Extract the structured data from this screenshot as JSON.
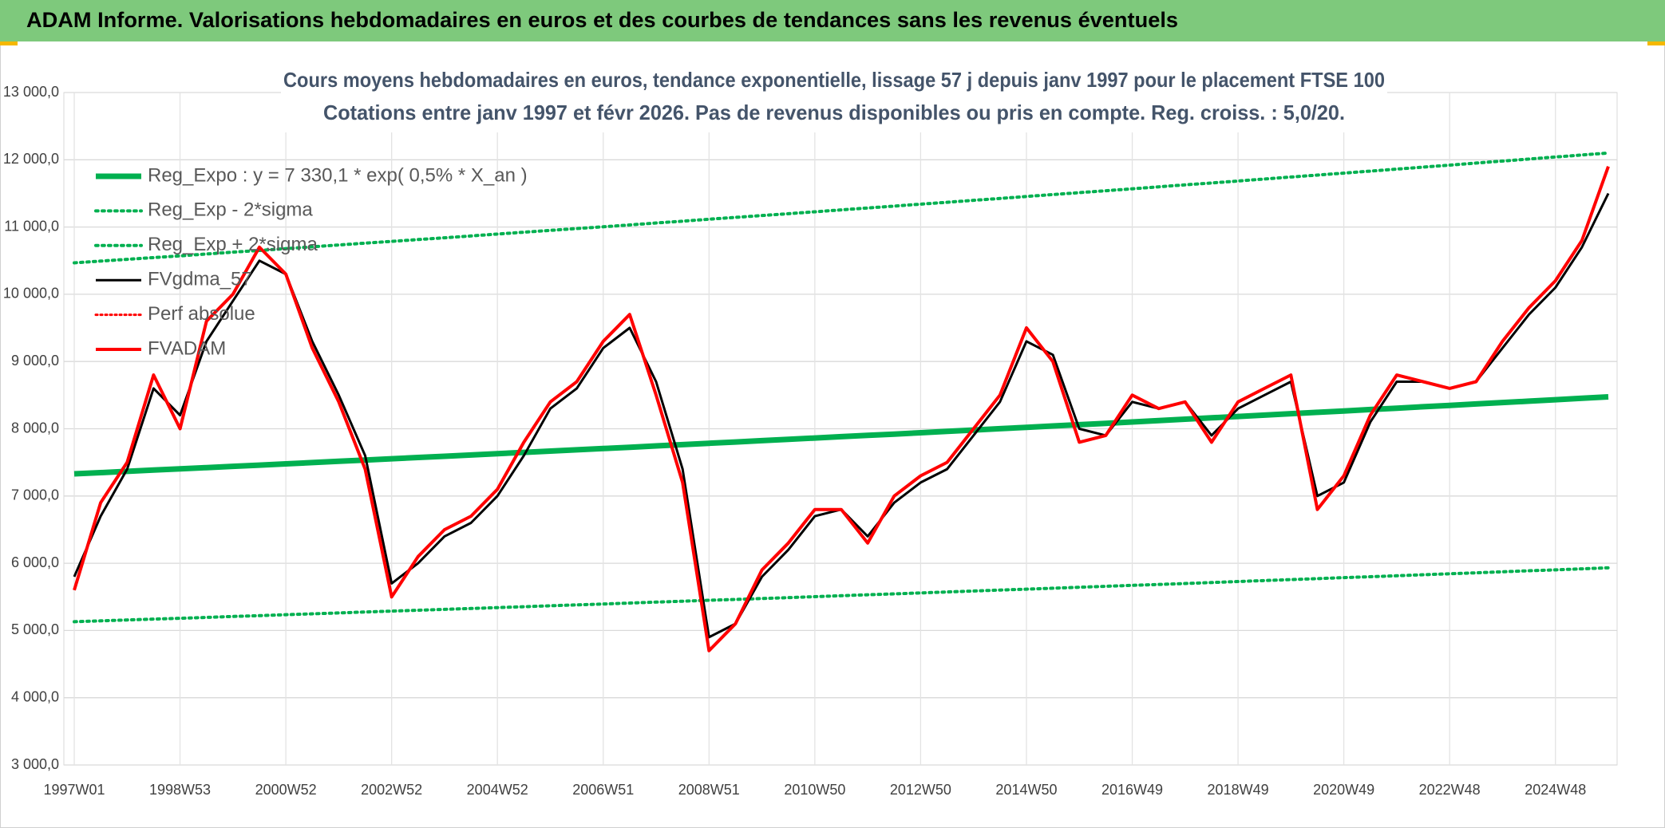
{
  "chart_data": {
    "type": "line",
    "header_title": "ADAM Informe. Valorisations hebdomadaires en euros et des courbes de tendances sans les revenus éventuels",
    "subtitle_lines": [
      "Cours moyens hebdomadaires en euros, tendance exponentielle, lissage 57 j depuis janv 1997 pour le placement FTSE 100",
      "Cotations entre janv 1997 et févr 2026. Pas de revenus disponibles ou pris en compte. Reg. croiss. : 5,0/20."
    ],
    "categories": [
      "1997W01",
      null,
      null,
      null,
      "1998W53",
      null,
      null,
      null,
      "2000W52",
      null,
      null,
      null,
      "2002W52",
      null,
      null,
      null,
      "2004W52",
      null,
      null,
      null,
      "2006W51",
      null,
      null,
      null,
      "2008W51",
      null,
      null,
      null,
      "2010W50",
      null,
      null,
      null,
      "2012W50",
      null,
      null,
      null,
      "2014W50",
      null,
      null,
      null,
      "2016W49",
      null,
      null,
      null,
      "2018W49",
      null,
      null,
      null,
      "2020W49",
      null,
      null,
      null,
      "2022W48",
      null,
      null,
      null,
      "2024W48",
      null,
      null
    ],
    "ylim": [
      3000,
      13000
    ],
    "yticks": [
      {
        "value": 3000,
        "label": "3 000,0"
      },
      {
        "value": 4000,
        "label": "4 000,0"
      },
      {
        "value": 5000,
        "label": "5 000,0"
      },
      {
        "value": 6000,
        "label": "6 000,0"
      },
      {
        "value": 7000,
        "label": "7 000,0"
      },
      {
        "value": 8000,
        "label": "8 000,0"
      },
      {
        "value": 9000,
        "label": "9 000,0"
      },
      {
        "value": 10000,
        "label": "10 000,0"
      },
      {
        "value": 11000,
        "label": "11 000,0"
      },
      {
        "value": 12000,
        "label": "12 000,0"
      },
      {
        "value": 13000,
        "label": "13 000,0"
      }
    ],
    "grid": true,
    "legend": "top-left",
    "series": [
      {
        "name": "Reg_Expo : y = 7 330,1 * exp( 0,5% *  X_an )",
        "color": "#00b050",
        "style": "solid",
        "width": 7,
        "values": [
          7330,
          7348,
          7367,
          7385,
          7403,
          7422,
          7441,
          7459,
          7478,
          7497,
          7516,
          7535,
          7554,
          7573,
          7591,
          7610,
          7630,
          7649,
          7668,
          7687,
          7706,
          7725,
          7745,
          7764,
          7784,
          7803,
          7823,
          7842,
          7862,
          7882,
          7901,
          7921,
          7941,
          7961,
          7981,
          8001,
          8021,
          8041,
          8061,
          8081,
          8101,
          8122,
          8142,
          8162,
          8183,
          8203,
          8224,
          8244,
          8265,
          8286,
          8306,
          8327,
          8348,
          8369,
          8390,
          8411,
          8432,
          8453,
          8474
        ]
      },
      {
        "name": "Reg_Exp - 2*sigma",
        "color": "#00b050",
        "style": "dotted",
        "width": 4,
        "values": [
          5131,
          5144,
          5157,
          5170,
          5182,
          5195,
          5209,
          5221,
          5235,
          5248,
          5261,
          5275,
          5288,
          5301,
          5314,
          5327,
          5341,
          5354,
          5368,
          5381,
          5394,
          5408,
          5422,
          5435,
          5449,
          5462,
          5476,
          5489,
          5503,
          5517,
          5531,
          5545,
          5559,
          5573,
          5587,
          5601,
          5615,
          5629,
          5643,
          5657,
          5671,
          5685,
          5699,
          5713,
          5728,
          5742,
          5757,
          5771,
          5786,
          5800,
          5814,
          5829,
          5844,
          5858,
          5873,
          5888,
          5902,
          5917,
          5932
        ]
      },
      {
        "name": "Reg_Exp + 2*sigma",
        "color": "#00b050",
        "style": "dotted",
        "width": 4,
        "values": [
          10467,
          10493,
          10520,
          10546,
          10571,
          10599,
          10626,
          10651,
          10679,
          10706,
          10733,
          10760,
          10787,
          10814,
          10840,
          10867,
          10896,
          10923,
          10950,
          10977,
          11004,
          11031,
          11060,
          11087,
          11116,
          11143,
          11171,
          11198,
          11227,
          11255,
          11283,
          11311,
          11340,
          11368,
          11397,
          11425,
          11454,
          11483,
          11511,
          11540,
          11568,
          11598,
          11627,
          11655,
          11685,
          11714,
          11744,
          11772,
          11802,
          11832,
          11861,
          11891,
          11921,
          11951,
          11981,
          12011,
          12041,
          12071,
          12101
        ]
      },
      {
        "name": "FVgdma_57",
        "color": "#000000",
        "style": "solid",
        "width": 3,
        "values": [
          5800,
          6700,
          7400,
          8600,
          8200,
          9300,
          9900,
          10500,
          10300,
          9300,
          8500,
          7600,
          5700,
          6000,
          6400,
          6600,
          7000,
          7600,
          8300,
          8600,
          9200,
          9500,
          8700,
          7400,
          4900,
          5100,
          5800,
          6200,
          6700,
          6800,
          6400,
          6900,
          7200,
          7400,
          7900,
          8400,
          9300,
          9100,
          8000,
          7900,
          8400,
          8300,
          8400,
          7900,
          8300,
          8500,
          8700,
          7000,
          7200,
          8100,
          8700,
          8700,
          8600,
          8700,
          9200,
          9700,
          10100,
          10700,
          11500
        ]
      },
      {
        "name": "Perf absolue",
        "color": "#ff0000",
        "style": "dotted",
        "width": 3,
        "values": [
          null,
          null,
          null,
          null,
          null,
          null,
          null,
          null,
          null,
          null,
          null,
          null,
          null,
          null,
          null,
          null,
          null,
          null,
          null,
          null,
          null,
          null,
          null,
          null,
          null,
          null,
          null,
          null,
          null,
          null,
          null,
          null,
          null,
          null,
          null,
          null,
          null,
          null,
          null,
          null,
          null,
          null,
          null,
          null,
          null,
          null,
          null,
          null,
          null,
          null,
          null,
          null,
          null,
          null,
          null,
          null,
          null,
          null,
          null
        ]
      },
      {
        "name": "FVADAM",
        "color": "#ff0000",
        "style": "solid",
        "width": 4,
        "values": [
          5600,
          6900,
          7500,
          8800,
          8000,
          9600,
          10000,
          10700,
          10300,
          9200,
          8400,
          7400,
          5500,
          6100,
          6500,
          6700,
          7100,
          7800,
          8400,
          8700,
          9300,
          9700,
          8500,
          7200,
          4700,
          5100,
          5900,
          6300,
          6800,
          6800,
          6300,
          7000,
          7300,
          7500,
          8000,
          8500,
          9500,
          9000,
          7800,
          7900,
          8500,
          8300,
          8400,
          7800,
          8400,
          8600,
          8800,
          6800,
          7300,
          8200,
          8800,
          8700,
          8600,
          8700,
          9300,
          9800,
          10200,
          10800,
          11900
        ]
      }
    ]
  }
}
